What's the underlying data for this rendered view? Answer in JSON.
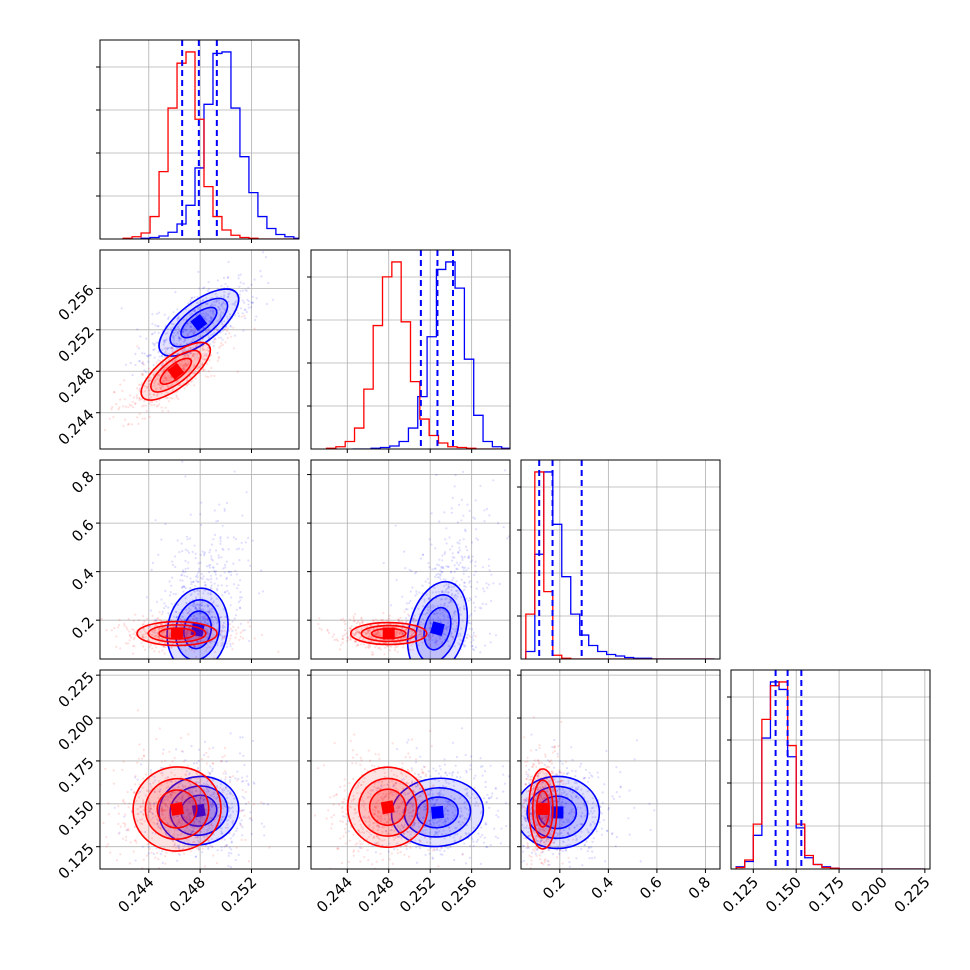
{
  "chart_data": {
    "type": "corner",
    "n_params": 4,
    "grid": true,
    "colors": {
      "series_a": "#0000ff",
      "series_b": "#ff0000",
      "quantile_lines": "#0000ff"
    },
    "ticks": {
      "p1": [
        "0.244",
        "0.248",
        "0.252"
      ],
      "p2": [
        "0.244",
        "0.248",
        "0.252",
        "0.256"
      ],
      "p3": [
        "0.2",
        "0.4",
        "0.6",
        "0.8"
      ],
      "p4": [
        "0.125",
        "0.150",
        "0.175",
        "0.200",
        "0.225"
      ]
    },
    "tick_values": {
      "p1": [
        0.244,
        0.248,
        0.252
      ],
      "p2": [
        0.244,
        0.248,
        0.252,
        0.256
      ],
      "p3": [
        0.2,
        0.4,
        0.6,
        0.8
      ],
      "p4": [
        0.125,
        0.15,
        0.175,
        0.2,
        0.225
      ]
    },
    "ranges": {
      "p1": [
        0.2402,
        0.2557
      ],
      "p2": [
        0.2405,
        0.2597
      ],
      "p3": [
        0.04,
        0.86
      ],
      "p4": [
        0.112,
        0.228
      ]
    },
    "series": [
      {
        "color": "#0000ff",
        "mean": [
          0.2479,
          0.2527,
          0.17,
          0.145
        ],
        "std": [
          0.0013,
          0.0013,
          0.12,
          0.008
        ],
        "quantiles": {
          "p1": [
            0.2466,
            0.2479,
            0.2493
          ],
          "p2": [
            0.2511,
            0.2527,
            0.2542
          ],
          "p3": [
            0.115,
            0.17,
            0.29
          ],
          "p4": [
            0.138,
            0.145,
            0.153
          ]
        },
        "hist": {
          "p1": {
            "edges_from": 0.242,
            "bin": 0.0007,
            "counts": [
              0,
              0,
              1,
              2,
              4,
              9,
              20,
              45,
              95,
              180,
              248,
              250,
              175,
              110,
              62,
              30,
              14,
              6,
              3,
              1,
              0,
              0
            ]
          },
          "p2": {
            "edges_from": 0.2445,
            "bin": 0.0009,
            "counts": [
              0,
              0,
              1,
              2,
              4,
              10,
              28,
              70,
              150,
              240,
              250,
              215,
              120,
              45,
              10,
              3,
              1
            ]
          },
          "p3": {
            "edges_from": 0.06,
            "bin": 0.037,
            "counts": [
              10,
              140,
              250,
              180,
              110,
              60,
              32,
              18,
              10,
              6,
              4,
              2,
              1,
              1,
              0,
              0,
              0,
              0,
              0,
              0,
              0
            ]
          },
          "p4": {
            "edges_from": 0.115,
            "bin": 0.005,
            "counts": [
              3,
              10,
              45,
              175,
              250,
              240,
              150,
              55,
              15,
              6,
              3,
              1,
              0,
              0,
              0,
              0,
              0,
              0,
              0,
              0,
              0,
              0
            ]
          }
        }
      },
      {
        "color": "#ff0000",
        "mean": [
          0.2461,
          0.248,
          0.145,
          0.146
        ],
        "std": [
          0.0011,
          0.0011,
          0.02,
          0.008
        ],
        "hist": {
          "p1": {
            "edges_from": 0.242,
            "bin": 0.0007,
            "counts": [
              1,
              3,
              8,
              30,
              90,
              175,
              235,
              250,
              160,
              70,
              30,
              12,
              5,
              2,
              1,
              0,
              0,
              0,
              0,
              0,
              0,
              0
            ]
          },
          "p2": {
            "edges_from": 0.242,
            "bin": 0.0009,
            "counts": [
              1,
              3,
              10,
              28,
              80,
              165,
              230,
              250,
              170,
              90,
              40,
              18,
              8,
              3,
              2,
              1,
              0,
              0,
              0,
              0,
              0,
              0
            ]
          },
          "p3": {
            "edges_from": 0.06,
            "bin": 0.037,
            "counts": [
              60,
              250,
              90,
              5,
              1,
              0,
              0,
              0,
              0,
              0,
              0,
              0,
              0,
              0,
              0,
              0,
              0,
              0,
              0,
              0,
              0
            ]
          },
          "p4": {
            "edges_from": 0.115,
            "bin": 0.005,
            "counts": [
              2,
              12,
              60,
              200,
              245,
              250,
              165,
              60,
              18,
              6,
              2,
              1,
              0,
              0,
              0,
              0,
              0,
              0,
              0,
              0,
              0,
              0
            ]
          }
        }
      }
    ]
  }
}
